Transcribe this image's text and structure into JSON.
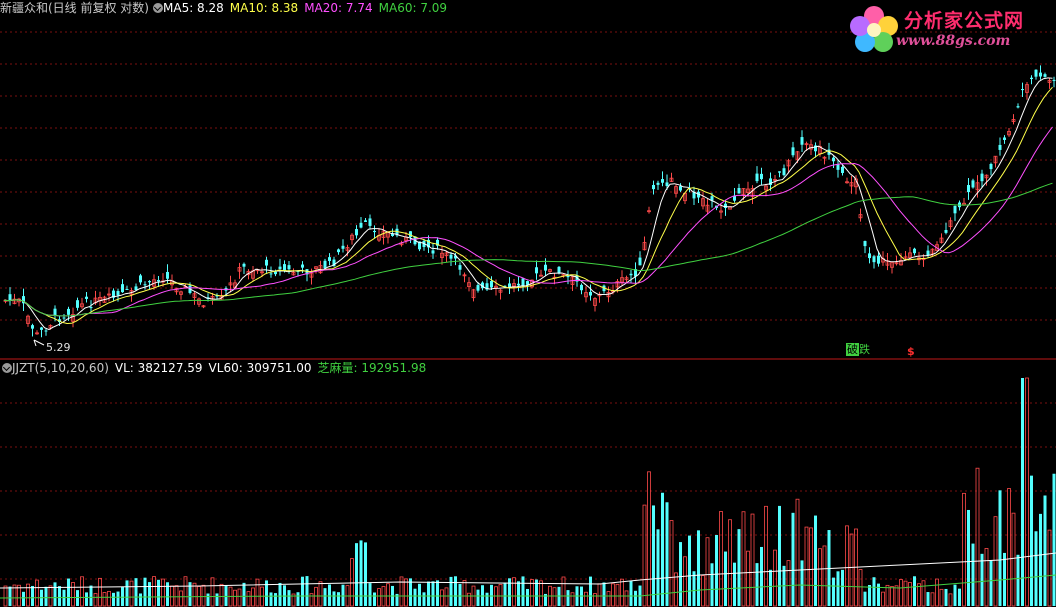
{
  "price_header": {
    "title": "新疆众和(日线 前复权 对数)",
    "ma5": "MA5: 8.28",
    "ma10": "MA10: 8.38",
    "ma20": "MA20: 7.74",
    "ma60": "MA60: 7.09"
  },
  "volume_header": {
    "title": "JJZT(5,10,20,60)",
    "vl": "VL: 382127.59",
    "vl60": "VL60: 309751.00",
    "zhima": "芝麻量: 192951.98"
  },
  "low_marker": "5.29",
  "signal_marker_1": "破",
  "signal_marker_1b": "跌",
  "signal_marker_2": "$",
  "logo": {
    "title": "分析家公式网",
    "url": "www.88gs.com"
  },
  "colors": {
    "background": "#000000",
    "up": "#ff4a4a",
    "down": "#54ffff",
    "ma5": "#ffffff",
    "ma10": "#ffff4a",
    "ma20": "#ff50ff",
    "ma60": "#40d040",
    "grid": "#7a1010"
  },
  "chart_data": {
    "type": "candlestick",
    "scale": "log",
    "ma_latest": {
      "MA5": 8.28,
      "MA10": 8.38,
      "MA20": 7.74,
      "MA60": 7.09
    },
    "annotated_low": 5.29,
    "volume_latest": {
      "VL": 382127.59,
      "VL60": 309751.0,
      "芝麻量": 192951.98
    }
  }
}
